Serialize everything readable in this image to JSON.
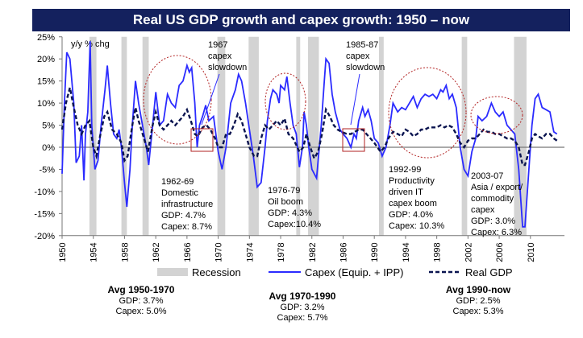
{
  "title": "Real US GDP growth and capex growth: 1950 – now",
  "chart_data": {
    "type": "line",
    "title": "Real US GDP growth and capex growth: 1950 – now",
    "ylabel": "y/y % chg",
    "ylim": [
      -20,
      25
    ],
    "yticks": [
      "25%",
      "20%",
      "15%",
      "10%",
      "5%",
      "0%",
      "-5%",
      "-10%",
      "-15%",
      "-20%"
    ],
    "ytick_values": [
      25,
      20,
      15,
      10,
      5,
      0,
      -5,
      -10,
      -15,
      -20
    ],
    "xlim": [
      1950,
      2013.5
    ],
    "xticks": [
      1950,
      1954,
      1958,
      1962,
      1966,
      1970,
      1974,
      1978,
      1982,
      1986,
      1990,
      1994,
      1998,
      2002,
      2006,
      2010
    ],
    "legend": {
      "placement": "bottom",
      "entries": [
        "Recession",
        "Capex (Equip. + IPP)",
        "Real GDP"
      ]
    },
    "recessions": [
      [
        1953.5,
        1954.4
      ],
      [
        1957.6,
        1958.3
      ],
      [
        1960.3,
        1961.1
      ],
      [
        1969.9,
        1970.9
      ],
      [
        1973.9,
        1975.2
      ],
      [
        1980.0,
        1980.5
      ],
      [
        1981.5,
        1982.9
      ],
      [
        1990.6,
        1991.2
      ],
      [
        2001.2,
        2001.9
      ],
      [
        2007.9,
        2009.5
      ]
    ],
    "series": [
      {
        "name": "Capex (Equip. + IPP)",
        "color": "#2b2bff",
        "points": [
          [
            1950,
            -6
          ],
          [
            1950.3,
            10
          ],
          [
            1950.6,
            21.5
          ],
          [
            1951,
            20
          ],
          [
            1951.5,
            10
          ],
          [
            1951.8,
            -3.5
          ],
          [
            1952.2,
            -2
          ],
          [
            1952.5,
            5
          ],
          [
            1952.8,
            -7.5
          ],
          [
            1953,
            3
          ],
          [
            1953.3,
            8
          ],
          [
            1953.6,
            24
          ],
          [
            1953.8,
            5
          ],
          [
            1954.2,
            -5
          ],
          [
            1954.6,
            -3
          ],
          [
            1955,
            5
          ],
          [
            1955.5,
            13
          ],
          [
            1955.8,
            18.5
          ],
          [
            1956.2,
            10
          ],
          [
            1956.6,
            3
          ],
          [
            1957,
            2
          ],
          [
            1957.3,
            4
          ],
          [
            1957.6,
            0
          ],
          [
            1958,
            -8
          ],
          [
            1958.3,
            -13.5
          ],
          [
            1958.7,
            -5
          ],
          [
            1959,
            5
          ],
          [
            1959.4,
            15
          ],
          [
            1959.8,
            10
          ],
          [
            1960.3,
            5
          ],
          [
            1960.8,
            0
          ],
          [
            1961.1,
            -4
          ],
          [
            1961.6,
            5
          ],
          [
            1962,
            12.5
          ],
          [
            1962.5,
            5
          ],
          [
            1963,
            6
          ],
          [
            1963.5,
            12
          ],
          [
            1964,
            10
          ],
          [
            1964.5,
            9
          ],
          [
            1965,
            14
          ],
          [
            1965.5,
            15
          ],
          [
            1966,
            18.5
          ],
          [
            1966.3,
            17
          ],
          [
            1966.6,
            18
          ],
          [
            1967,
            10
          ],
          [
            1967.3,
            0
          ],
          [
            1967.6,
            5
          ],
          [
            1968,
            7
          ],
          [
            1968.4,
            9.5
          ],
          [
            1968.8,
            6
          ],
          [
            1969.4,
            7
          ],
          [
            1970,
            -1
          ],
          [
            1970.5,
            -5
          ],
          [
            1971,
            0
          ],
          [
            1971.6,
            10
          ],
          [
            1972.2,
            13
          ],
          [
            1972.6,
            16.5
          ],
          [
            1973,
            15
          ],
          [
            1973.5,
            10
          ],
          [
            1974,
            4
          ],
          [
            1974.5,
            -2
          ],
          [
            1975,
            -9
          ],
          [
            1975.5,
            -8
          ],
          [
            1976,
            0
          ],
          [
            1976.3,
            6
          ],
          [
            1976.7,
            11
          ],
          [
            1977,
            13
          ],
          [
            1977.5,
            12
          ],
          [
            1977.8,
            10
          ],
          [
            1978,
            14
          ],
          [
            1978.5,
            13
          ],
          [
            1978.8,
            16
          ],
          [
            1979.2,
            10
          ],
          [
            1979.6,
            5
          ],
          [
            1980,
            3
          ],
          [
            1980.4,
            -4.5
          ],
          [
            1980.8,
            0
          ],
          [
            1981,
            8
          ],
          [
            1981.3,
            5
          ],
          [
            1981.6,
            0
          ],
          [
            1982,
            -5
          ],
          [
            1982.6,
            -7
          ],
          [
            1983.2,
            5
          ],
          [
            1983.6,
            15
          ],
          [
            1983.8,
            20
          ],
          [
            1984.2,
            19
          ],
          [
            1984.6,
            12
          ],
          [
            1985,
            8
          ],
          [
            1985.6,
            4
          ],
          [
            1986,
            3
          ],
          [
            1986.5,
            2
          ],
          [
            1987,
            0
          ],
          [
            1987.4,
            3
          ],
          [
            1987.7,
            2
          ],
          [
            1988,
            6
          ],
          [
            1988.5,
            9
          ],
          [
            1988.8,
            7
          ],
          [
            1989.2,
            8.5
          ],
          [
            1989.6,
            6
          ],
          [
            1990,
            2
          ],
          [
            1990.5,
            1
          ],
          [
            1991,
            -2
          ],
          [
            1991.5,
            0
          ],
          [
            1992,
            5
          ],
          [
            1992.4,
            10
          ],
          [
            1993,
            8
          ],
          [
            1993.5,
            9
          ],
          [
            1994,
            8.5
          ],
          [
            1994.5,
            10
          ],
          [
            1995,
            11.5
          ],
          [
            1995.5,
            9
          ],
          [
            1996,
            11
          ],
          [
            1996.5,
            12
          ],
          [
            1997,
            11.5
          ],
          [
            1997.5,
            12
          ],
          [
            1998,
            11
          ],
          [
            1998.5,
            13
          ],
          [
            1998.8,
            12.5
          ],
          [
            1999.2,
            14
          ],
          [
            1999.6,
            11
          ],
          [
            2000,
            12
          ],
          [
            2000.5,
            9
          ],
          [
            2001,
            0
          ],
          [
            2001.5,
            -5
          ],
          [
            2002,
            -6.5
          ],
          [
            2002.5,
            -1
          ],
          [
            2003,
            2
          ],
          [
            2003.3,
            7
          ],
          [
            2003.8,
            6
          ],
          [
            2004.4,
            7
          ],
          [
            2005,
            10
          ],
          [
            2005.5,
            8
          ],
          [
            2006,
            7
          ],
          [
            2006.5,
            8
          ],
          [
            2007,
            5
          ],
          [
            2007.5,
            4
          ],
          [
            2008,
            3
          ],
          [
            2008.5,
            -5
          ],
          [
            2009,
            -18
          ],
          [
            2009.3,
            -18
          ],
          [
            2009.8,
            -5
          ],
          [
            2010.2,
            5
          ],
          [
            2010.6,
            11
          ],
          [
            2011,
            12
          ],
          [
            2011.5,
            9
          ],
          [
            2012,
            8.5
          ],
          [
            2012.5,
            8
          ],
          [
            2013,
            3.5
          ],
          [
            2013.4,
            3
          ]
        ]
      },
      {
        "name": "Real GDP",
        "color": "#0a1450",
        "points": [
          [
            1950,
            4
          ],
          [
            1950.5,
            10
          ],
          [
            1951,
            13.5
          ],
          [
            1951.5,
            9
          ],
          [
            1952,
            5
          ],
          [
            1952.5,
            3
          ],
          [
            1953,
            5
          ],
          [
            1953.5,
            6
          ],
          [
            1954,
            0
          ],
          [
            1954.4,
            -2
          ],
          [
            1954.8,
            2
          ],
          [
            1955.4,
            7
          ],
          [
            1955.8,
            8
          ],
          [
            1956.4,
            4
          ],
          [
            1957,
            3
          ],
          [
            1957.6,
            1
          ],
          [
            1958,
            -3
          ],
          [
            1958.4,
            -2
          ],
          [
            1959,
            5
          ],
          [
            1959.4,
            9
          ],
          [
            1959.8,
            6
          ],
          [
            1960.5,
            2
          ],
          [
            1961,
            -1
          ],
          [
            1961.6,
            5
          ],
          [
            1962,
            8
          ],
          [
            1962.5,
            5
          ],
          [
            1963,
            4
          ],
          [
            1963.5,
            5
          ],
          [
            1964,
            6
          ],
          [
            1964.5,
            5
          ],
          [
            1965,
            6
          ],
          [
            1965.5,
            7
          ],
          [
            1966,
            8.5
          ],
          [
            1966.5,
            6
          ],
          [
            1967,
            3
          ],
          [
            1967.4,
            2.5
          ],
          [
            1968,
            4.5
          ],
          [
            1968.5,
            5
          ],
          [
            1969,
            4
          ],
          [
            1969.6,
            2
          ],
          [
            1970,
            0
          ],
          [
            1970.5,
            0
          ],
          [
            1971,
            3
          ],
          [
            1971.5,
            3
          ],
          [
            1972,
            5
          ],
          [
            1972.5,
            7.5
          ],
          [
            1973,
            6
          ],
          [
            1973.5,
            3
          ],
          [
            1974,
            0
          ],
          [
            1974.6,
            -2
          ],
          [
            1975,
            -2
          ],
          [
            1975.5,
            2
          ],
          [
            1976,
            5
          ],
          [
            1976.5,
            4
          ],
          [
            1977,
            5
          ],
          [
            1977.5,
            6
          ],
          [
            1978,
            5
          ],
          [
            1978.5,
            6.5
          ],
          [
            1979,
            3
          ],
          [
            1979.6,
            2
          ],
          [
            1980.4,
            -1
          ],
          [
            1980.9,
            0
          ],
          [
            1981.3,
            3
          ],
          [
            1981.8,
            0
          ],
          [
            1982.3,
            -2.5
          ],
          [
            1982.8,
            -1
          ],
          [
            1983.3,
            3
          ],
          [
            1983.8,
            8.5
          ],
          [
            1984.3,
            7
          ],
          [
            1984.8,
            5
          ],
          [
            1985.3,
            4
          ],
          [
            1985.8,
            3.5
          ],
          [
            1986.5,
            3
          ],
          [
            1987,
            3
          ],
          [
            1987.5,
            3.5
          ],
          [
            1988,
            4
          ],
          [
            1988.5,
            4
          ],
          [
            1989,
            3
          ],
          [
            1989.5,
            2
          ],
          [
            1990,
            1
          ],
          [
            1990.8,
            -1
          ],
          [
            1991.3,
            0
          ],
          [
            1991.8,
            2
          ],
          [
            1992.4,
            3.5
          ],
          [
            1993,
            3
          ],
          [
            1993.5,
            2.5
          ],
          [
            1994,
            4
          ],
          [
            1994.5,
            3.5
          ],
          [
            1995,
            2.5
          ],
          [
            1995.5,
            3
          ],
          [
            1996,
            4
          ],
          [
            1996.5,
            4
          ],
          [
            1997,
            4.5
          ],
          [
            1997.5,
            4.5
          ],
          [
            1998,
            4.5
          ],
          [
            1998.5,
            5
          ],
          [
            1999,
            4.5
          ],
          [
            1999.5,
            5
          ],
          [
            2000,
            4.5
          ],
          [
            2000.5,
            3
          ],
          [
            2001,
            1
          ],
          [
            2001.5,
            0
          ],
          [
            2002,
            1.5
          ],
          [
            2002.5,
            2
          ],
          [
            2003,
            2
          ],
          [
            2003.5,
            3
          ],
          [
            2004,
            4
          ],
          [
            2004.5,
            3.5
          ],
          [
            2005,
            3.5
          ],
          [
            2005.5,
            3
          ],
          [
            2006,
            3
          ],
          [
            2006.5,
            2.5
          ],
          [
            2007,
            2
          ],
          [
            2007.5,
            2
          ],
          [
            2008,
            1.5
          ],
          [
            2008.5,
            0
          ],
          [
            2009,
            -4
          ],
          [
            2009.3,
            -4
          ],
          [
            2009.8,
            -1
          ],
          [
            2010.2,
            2
          ],
          [
            2010.6,
            3
          ],
          [
            2011,
            2.5
          ],
          [
            2011.5,
            2
          ],
          [
            2012,
            3
          ],
          [
            2012.5,
            3
          ],
          [
            2013,
            2
          ],
          [
            2013.4,
            1.5
          ]
        ]
      }
    ],
    "annotations": [
      {
        "lines": [
          "1967",
          "capex",
          "slowdown"
        ]
      },
      {
        "lines": [
          "1985-87",
          "capex",
          "slowdown"
        ]
      },
      {
        "lines": [
          "1962-69",
          "Domestic",
          "infrastructure",
          "GDP: 4.7%",
          "Capex: 8.7%"
        ]
      },
      {
        "lines": [
          "1976-79",
          "Oil boom",
          "GDP: 4.3%",
          "Capex:10.4%"
        ]
      },
      {
        "lines": [
          "1992-99",
          "Productivity",
          "driven IT",
          "capex boom",
          "GDP: 4.0%",
          "Capex: 10.3%"
        ]
      },
      {
        "lines": [
          "2003-07",
          "Asia / export/",
          "commodity",
          "capex",
          "GDP: 3.0%",
          "Capex: 6.3%"
        ]
      }
    ]
  },
  "averages": [
    {
      "title": "Avg 1950-1970",
      "gdp": "GDP: 3.7%",
      "capex": "Capex: 5.0%"
    },
    {
      "title": "Avg 1970-1990",
      "gdp": "GDP: 3.2%",
      "capex": "Capex: 5.7%"
    },
    {
      "title": "Avg 1990-now",
      "gdp": "GDP: 2.5%",
      "capex": "Capex: 5.3%"
    }
  ]
}
